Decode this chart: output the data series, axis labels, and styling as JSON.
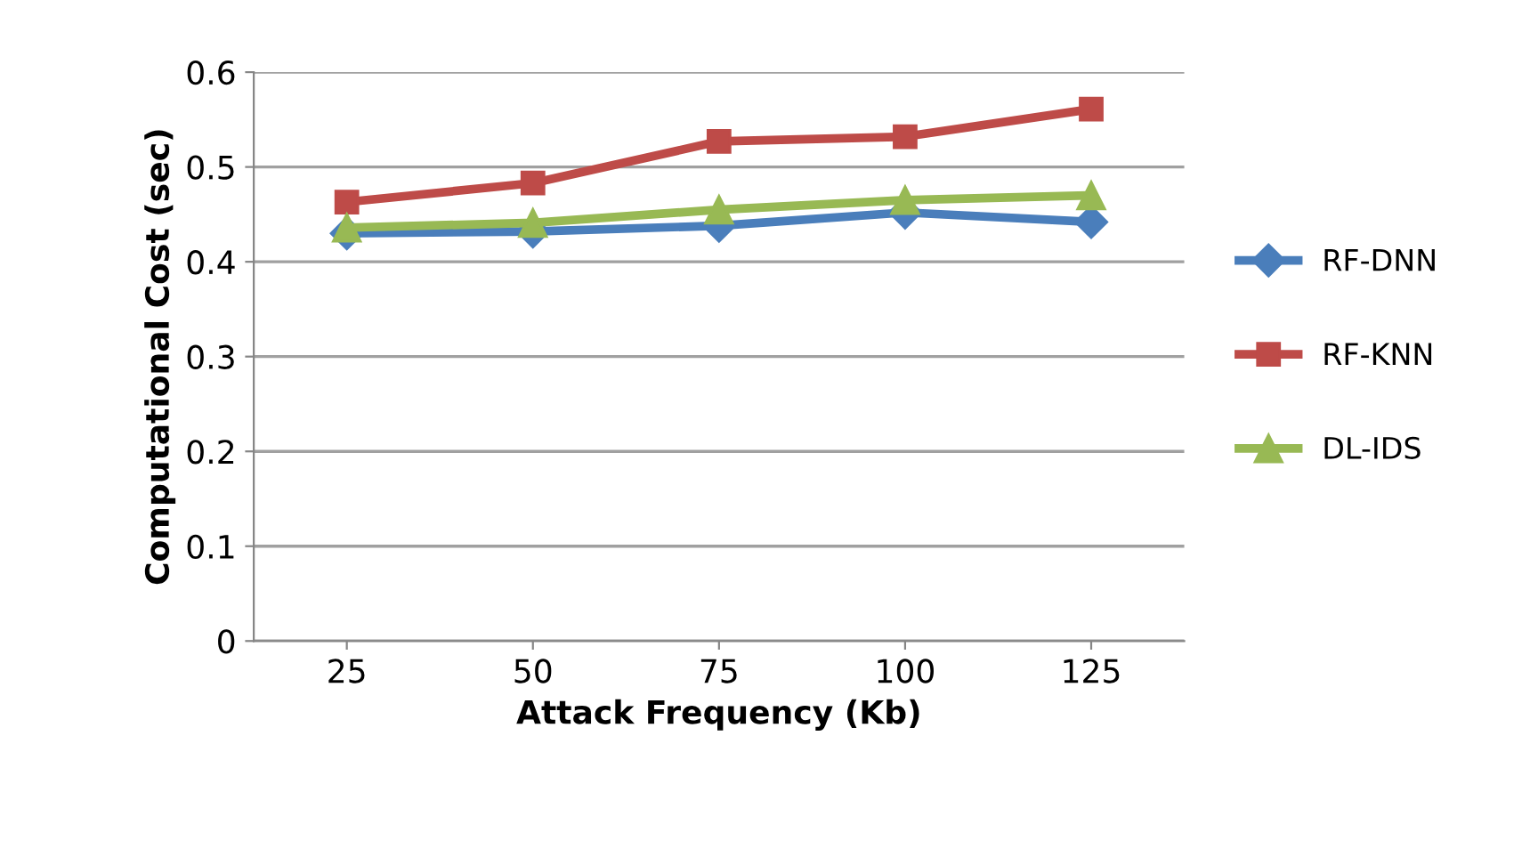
{
  "chart_data": {
    "type": "line",
    "xlabel": "Attack Frequency (Kb)",
    "ylabel": "Computational Cost (sec)",
    "categories": [
      "25",
      "50",
      "75",
      "100",
      "125"
    ],
    "series": [
      {
        "name": "RF-DNN",
        "color": "#4a7ebb",
        "marker": "diamond",
        "values": [
          0.43,
          0.432,
          0.438,
          0.452,
          0.442
        ]
      },
      {
        "name": "RF-KNN",
        "color": "#be4b48",
        "marker": "square",
        "values": [
          0.463,
          0.483,
          0.527,
          0.532,
          0.561
        ]
      },
      {
        "name": "DL-IDS",
        "color": "#98b954",
        "marker": "triangle",
        "values": [
          0.436,
          0.441,
          0.455,
          0.465,
          0.47
        ]
      }
    ],
    "ylim": [
      0,
      0.6
    ],
    "yticks": [
      {
        "value": 0,
        "label": "0"
      },
      0.1,
      0.2,
      0.3,
      0.4,
      0.5,
      0.6
    ],
    "grid": "y",
    "legend": "right",
    "line_style": "solid"
  }
}
